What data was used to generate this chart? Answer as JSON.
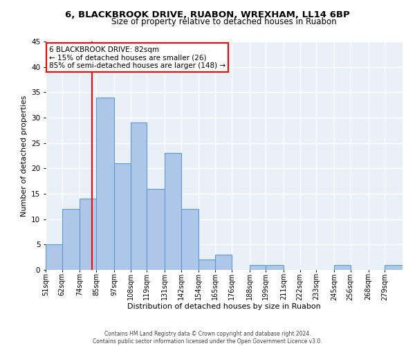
{
  "title1": "6, BLACKBROOK DRIVE, RUABON, WREXHAM, LL14 6BP",
  "title2": "Size of property relative to detached houses in Ruabon",
  "xlabel": "Distribution of detached houses by size in Ruabon",
  "ylabel": "Number of detached properties",
  "footnote": "Contains HM Land Registry data © Crown copyright and database right 2024.\nContains public sector information licensed under the Open Government Licence v3.0.",
  "bin_labels": [
    "51sqm",
    "62sqm",
    "74sqm",
    "85sqm",
    "97sqm",
    "108sqm",
    "119sqm",
    "131sqm",
    "142sqm",
    "154sqm",
    "165sqm",
    "176sqm",
    "188sqm",
    "199sqm",
    "211sqm",
    "222sqm",
    "233sqm",
    "245sqm",
    "256sqm",
    "268sqm",
    "279sqm"
  ],
  "values": [
    5,
    12,
    14,
    34,
    21,
    29,
    16,
    23,
    12,
    2,
    3,
    0,
    1,
    1,
    0,
    0,
    0,
    1,
    0,
    0,
    1
  ],
  "bar_color": "#aec6e8",
  "bar_edge_color": "#5b9bd5",
  "bar_left_edges": [
    51,
    62,
    74,
    85,
    97,
    108,
    119,
    131,
    142,
    154,
    165,
    176,
    188,
    199,
    211,
    222,
    233,
    245,
    256,
    268,
    279
  ],
  "bin_widths": [
    11,
    12,
    11,
    12,
    11,
    11,
    12,
    11,
    12,
    11,
    11,
    12,
    11,
    12,
    11,
    11,
    12,
    11,
    12,
    11,
    12
  ],
  "red_line_x": 82,
  "annotation_text": "6 BLACKBROOK DRIVE: 82sqm\n← 15% of detached houses are smaller (26)\n85% of semi-detached houses are larger (148) →",
  "annotation_box_color": "white",
  "annotation_box_edge": "red",
  "ylim": [
    0,
    45
  ],
  "yticks": [
    0,
    5,
    10,
    15,
    20,
    25,
    30,
    35,
    40,
    45
  ],
  "bg_color": "#eaf0f8",
  "grid_color": "white",
  "title1_fontsize": 9.5,
  "title2_fontsize": 8.5,
  "xlabel_fontsize": 8,
  "ylabel_fontsize": 8,
  "annotation_fontsize": 7.5,
  "tick_fontsize": 7,
  "ytick_fontsize": 7.5,
  "footnote_fontsize": 5.5
}
